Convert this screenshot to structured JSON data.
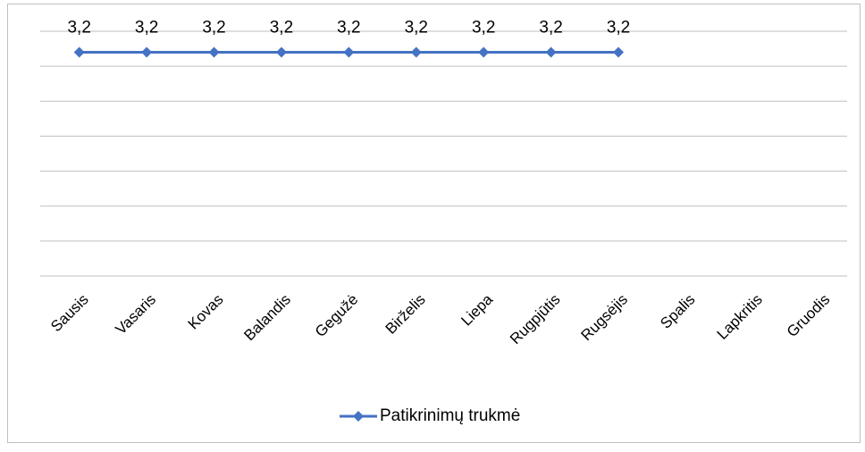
{
  "chart_data": {
    "type": "line",
    "categories": [
      "Sausis",
      "Vasaris",
      "Kovas",
      "Balandis",
      "Gegužė",
      "Birželis",
      "Liepa",
      "Rugpjūtis",
      "Rugsėjis",
      "Spalis",
      "Lapkritis",
      "Gruodis"
    ],
    "series": [
      {
        "name": "Patikrinimų trukmė",
        "color": "#4472c4",
        "values": [
          3.2,
          3.2,
          3.2,
          3.2,
          3.2,
          3.2,
          3.2,
          3.2,
          3.2,
          null,
          null,
          null
        ],
        "value_labels": [
          "3,2",
          "3,2",
          "3,2",
          "3,2",
          "3,2",
          "3,2",
          "3,2",
          "3,2",
          "3,2",
          null,
          null,
          null
        ]
      }
    ],
    "ylim": [
      0,
      3.5
    ],
    "yticks": [
      0,
      0.5,
      1,
      1.5,
      2,
      2.5,
      3,
      3.5
    ],
    "grid": true,
    "legend": "bottom"
  }
}
